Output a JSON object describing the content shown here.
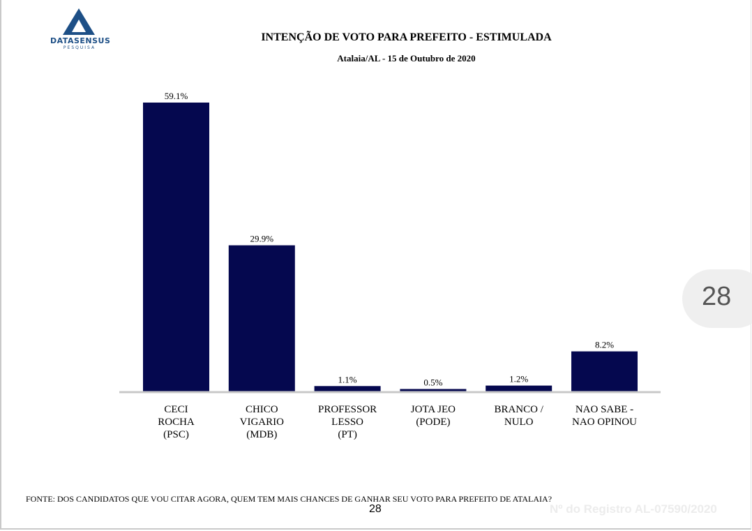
{
  "logo": {
    "name": "DATASENSUS",
    "sub": "PESQUISA"
  },
  "header": {
    "title": "INTENÇÃO DE VOTO PARA PREFEITO - ESTIMULADA",
    "subtitle": "Atalaia/AL - 15 de Outubro de 2020"
  },
  "colors": {
    "bar": "#05084f",
    "baseline": "#c8c8c8",
    "brand": "#1d4f86"
  },
  "chart_data": {
    "type": "bar",
    "categories": [
      [
        "CECI",
        "ROCHA",
        "(PSC)"
      ],
      [
        "CHICO",
        "VIGARIO",
        "(MDB)"
      ],
      [
        "PROFESSOR",
        "LESSO",
        "(PT)"
      ],
      [
        "JOTA JEO",
        "(PODE)"
      ],
      [
        "BRANCO /",
        "NULO"
      ],
      [
        "NAO SABE  -",
        "NAO OPINOU"
      ]
    ],
    "values": [
      59.1,
      29.9,
      1.1,
      0.5,
      1.2,
      8.2
    ],
    "value_labels": [
      "59.1%",
      "29.9%",
      "1.1%",
      "0.5%",
      "1.2%",
      "8.2%"
    ],
    "ylim": [
      0,
      60
    ],
    "grid": false,
    "legend": "none"
  },
  "footer": {
    "source": "FONTE: DOS CANDIDATOS QUE VOU CITAR AGORA, QUEM TEM MAIS CHANCES DE GANHAR SEU VOTO PARA PREFEITO DE ATALAIA?",
    "page": "28",
    "registry": "Nº do Registro AL-07590/2020"
  },
  "page_indicator": "28"
}
